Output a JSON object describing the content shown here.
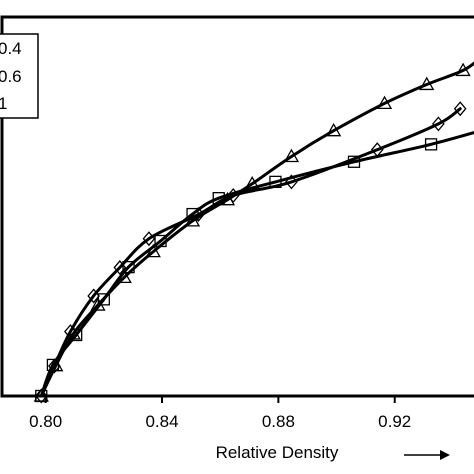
{
  "chart_data": {
    "type": "line",
    "xlabel": "Relative Density",
    "xlim": [
      0.785,
      0.95
    ],
    "ylim": [
      0,
      1
    ],
    "x_ticks": [
      0.8,
      0.84,
      0.88,
      0.92
    ],
    "x_tick_labels": [
      "0.80",
      "0.84",
      "0.88",
      "0.92"
    ],
    "legend_position": "top-left",
    "series": [
      {
        "name": "0.4",
        "marker": "triangle",
        "x": [
          0.7985,
          0.8035,
          0.8095,
          0.818,
          0.827,
          0.837,
          0.8505,
          0.8625,
          0.871,
          0.8845,
          0.899,
          0.9165,
          0.931,
          0.9435,
          0.9495
        ],
        "y": [
          0.0,
          0.08,
          0.164,
          0.24,
          0.313,
          0.381,
          0.462,
          0.518,
          0.56,
          0.632,
          0.7,
          0.772,
          0.822,
          0.859,
          0.892
        ]
      },
      {
        "name": "0.6",
        "marker": "diamond",
        "x": [
          0.7985,
          0.803,
          0.8085,
          0.8165,
          0.8255,
          0.8355,
          0.8525,
          0.8645,
          0.8845,
          0.914,
          0.935,
          0.9425
        ],
        "y": [
          0.0,
          0.079,
          0.17,
          0.264,
          0.339,
          0.415,
          0.479,
          0.529,
          0.565,
          0.65,
          0.718,
          0.758
        ]
      },
      {
        "name": "1",
        "marker": "square",
        "x": [
          0.7985,
          0.8025,
          0.8105,
          0.82,
          0.8285,
          0.8395,
          0.8505,
          0.8595,
          0.879,
          0.906,
          0.9325,
          0.9545
        ],
        "y": [
          0.0,
          0.082,
          0.161,
          0.255,
          0.34,
          0.409,
          0.48,
          0.522,
          0.565,
          0.618,
          0.664,
          0.711
        ]
      }
    ]
  }
}
